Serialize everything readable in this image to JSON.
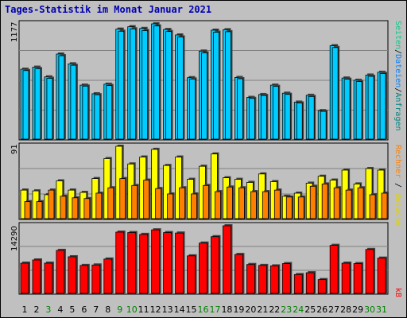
{
  "title": "Tages-Statistik im Monat Januar 2021",
  "colors": {
    "panel_bg": "#c0c0c0",
    "grid": "#808080",
    "hits": "#00ccff",
    "files": "#0080ff",
    "pages": "#00cc88",
    "visits": "#ffff00",
    "sites": "#ff8000",
    "kb": "#ff0000",
    "weekend_day": "#008000"
  },
  "chart_data": [
    {
      "type": "bar",
      "ymax_label": "1177",
      "ylim": [
        0,
        1177
      ],
      "legend": [
        "Anfragen",
        "Dateien",
        "Seiten"
      ],
      "categories": [
        "1",
        "2",
        "3",
        "4",
        "5",
        "6",
        "7",
        "8",
        "9",
        "10",
        "11",
        "12",
        "13",
        "14",
        "15",
        "16",
        "17",
        "18",
        "19",
        "20",
        "21",
        "22",
        "23",
        "24",
        "25",
        "26",
        "27",
        "28",
        "29",
        "30",
        "31"
      ],
      "weekend_days": [
        "3",
        "9",
        "10",
        "16",
        "17",
        "23",
        "24",
        "30",
        "31"
      ],
      "series": [
        {
          "name": "Anfragen",
          "values": [
            704,
            725,
            624,
            862,
            760,
            538,
            448,
            548,
            1122,
            1147,
            1129,
            1177,
            1118,
            1061,
            616,
            893,
            1111,
            1116,
            618,
            410,
            440,
            538,
            454,
            361,
            432,
            272,
            949,
            612,
            589,
            643,
            672
          ]
        },
        {
          "name": "Dateien",
          "values": [
            690,
            710,
            610,
            845,
            745,
            528,
            438,
            535,
            1100,
            1125,
            1107,
            1155,
            1097,
            1040,
            602,
            875,
            1090,
            1095,
            605,
            400,
            430,
            525,
            442,
            352,
            420,
            265,
            930,
            600,
            576,
            630,
            660
          ]
        }
      ]
    },
    {
      "type": "bar",
      "ymax_label": "91",
      "ylim": [
        0,
        91
      ],
      "legend": [
        "Rechner",
        "Besuche"
      ],
      "categories": [
        "1",
        "2",
        "3",
        "4",
        "5",
        "6",
        "7",
        "8",
        "9",
        "10",
        "11",
        "12",
        "13",
        "14",
        "15",
        "16",
        "17",
        "18",
        "19",
        "20",
        "21",
        "22",
        "23",
        "24",
        "25",
        "26",
        "27",
        "28",
        "29",
        "30",
        "31"
      ],
      "series": [
        {
          "name": "Besuche",
          "values": [
            34,
            33,
            28,
            46,
            34,
            31,
            49,
            75,
            91,
            68,
            77,
            87,
            66,
            77,
            48,
            65,
            81,
            50,
            48,
            44,
            55,
            45,
            26,
            30,
            43,
            52,
            47,
            60,
            42,
            62,
            60
          ]
        },
        {
          "name": "Rechner",
          "values": [
            19,
            19,
            34,
            26,
            24,
            23,
            30,
            37,
            49,
            40,
            47,
            36,
            29,
            37,
            29,
            40,
            32,
            38,
            37,
            32,
            32,
            34,
            25,
            25,
            39,
            42,
            37,
            34,
            37,
            28,
            30
          ]
        }
      ]
    },
    {
      "type": "bar",
      "ymax_label": "14290",
      "ylim": [
        0,
        14290
      ],
      "legend": [
        "kB"
      ],
      "categories": [
        "1",
        "2",
        "3",
        "4",
        "5",
        "6",
        "7",
        "8",
        "9",
        "10",
        "11",
        "12",
        "13",
        "14",
        "15",
        "16",
        "17",
        "18",
        "19",
        "20",
        "21",
        "22",
        "23",
        "24",
        "25",
        "26",
        "27",
        "28",
        "29",
        "30",
        "31"
      ],
      "series": [
        {
          "name": "kB",
          "values": [
            6100,
            6800,
            6100,
            8900,
            7500,
            5600,
            5700,
            7000,
            12900,
            12800,
            12400,
            13400,
            12800,
            12700,
            7700,
            10500,
            11900,
            14290,
            8000,
            5800,
            5600,
            5500,
            6000,
            3600,
            4000,
            2500,
            10000,
            6100,
            6000,
            9100,
            7200
          ]
        }
      ]
    }
  ]
}
